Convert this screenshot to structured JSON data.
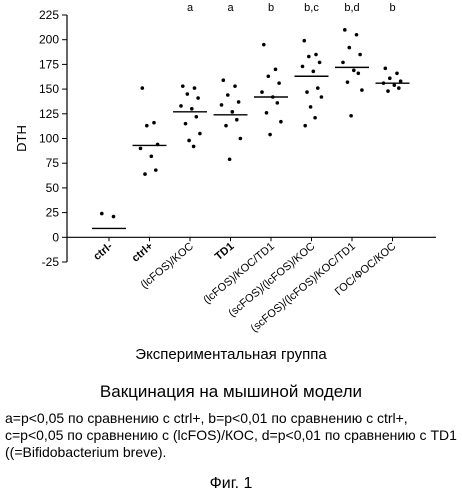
{
  "chart_data": {
    "type": "scatter",
    "ylabel": "DTH",
    "xlabel": "Экспериментальная группа",
    "ylim": [
      -25,
      225
    ],
    "yticks": [
      -25,
      0,
      25,
      50,
      75,
      100,
      125,
      150,
      175,
      200,
      225
    ],
    "categories": [
      "ctrl-",
      "ctrl+",
      "(lcFOS)/KOC",
      "TD1",
      "(lcFOS)/KOC/TD1",
      "(scFOS)/(lcFOS)/KOC",
      "(scFOS)/(lcFOS)/KOC/TD1",
      "ГОС/ФОС/КОС"
    ],
    "significance": [
      "",
      "",
      "a",
      "a",
      "b",
      "b,c",
      "b,d",
      "b"
    ],
    "medians": [
      9,
      93,
      127,
      124,
      142,
      163,
      172,
      156
    ],
    "points": [
      [
        24,
        21
      ],
      [
        151,
        116,
        113,
        94,
        90,
        82,
        68,
        64
      ],
      [
        153,
        151,
        145,
        141,
        133,
        130,
        122,
        115,
        105,
        98,
        92
      ],
      [
        159,
        153,
        144,
        137,
        134,
        127,
        119,
        113,
        100,
        79
      ],
      [
        195,
        170,
        163,
        156,
        147,
        142,
        136,
        126,
        117,
        104
      ],
      [
        199,
        185,
        183,
        177,
        173,
        168,
        151,
        147,
        142,
        132,
        121,
        113
      ],
      [
        210,
        205,
        192,
        185,
        177,
        169,
        166,
        157,
        149,
        123
      ],
      [
        171,
        166,
        161,
        158,
        156,
        154,
        151,
        148
      ]
    ]
  },
  "subtitle": "Вакцинация на мышиной модели",
  "footnote": "a=p<0,05 по сравнению с ctrl+, b=p<0,01 по сравнению с ctrl+, c=p<0,05 по сравнению с (lcFOS)/КОС, d=p<0,01 по сравнению с TD1 ((=Bifidobacterium breve).",
  "figure_label": "Фиг. 1"
}
